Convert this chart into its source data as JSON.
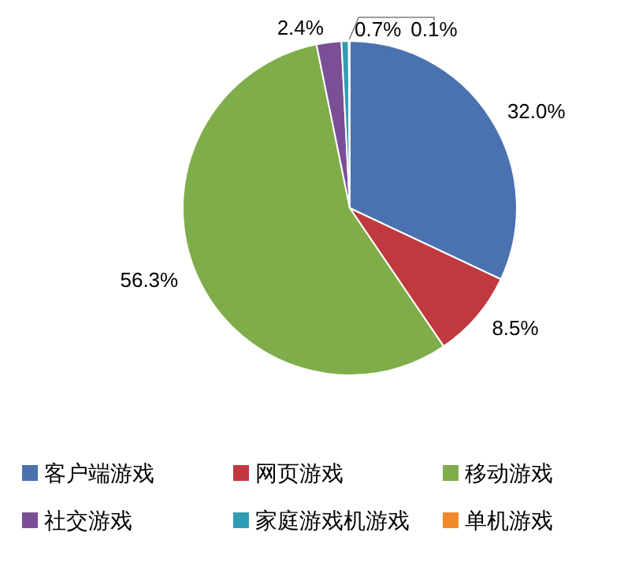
{
  "chart_data": {
    "type": "pie",
    "categories": [
      "客户端游戏",
      "网页游戏",
      "移动游戏",
      "社交游戏",
      "家庭游戏机游戏",
      "单机游戏"
    ],
    "values": [
      32.0,
      8.5,
      56.3,
      2.4,
      0.7,
      0.1
    ],
    "colors": [
      "#4a72b0",
      "#c0393f",
      "#7fad4a",
      "#7a4f95",
      "#2f9cb3",
      "#f08a2c"
    ],
    "value_labels": [
      "32.0%",
      "8.5%",
      "56.3%",
      "2.4%",
      "0.7%",
      "0.1%"
    ],
    "legend": "bottom"
  }
}
